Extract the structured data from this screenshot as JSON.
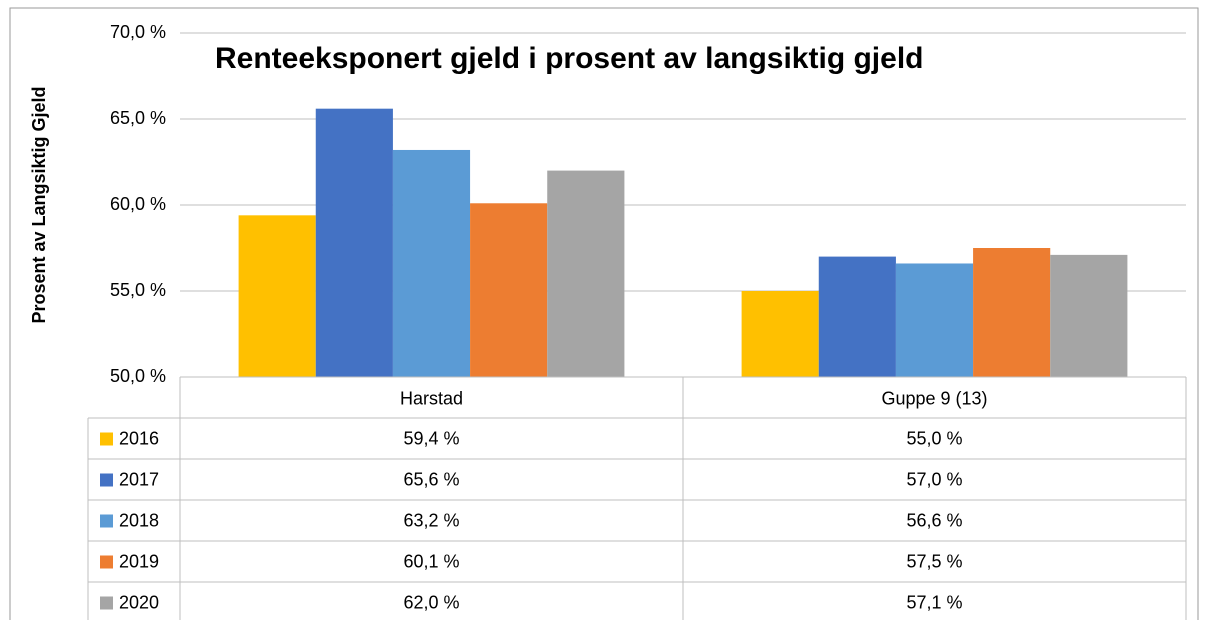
{
  "chart_data": {
    "type": "bar",
    "title": "Renteeksponert gjeld i prosent av langsiktig gjeld",
    "y_label": "Prosent av Langsiktig Gjeld",
    "categories": [
      "Harstad",
      "Guppe 9 (13)"
    ],
    "series": [
      {
        "name": "2016",
        "color": "#ffc000",
        "values": [
          59.4,
          55.0
        ],
        "value_labels": [
          "59,4 %",
          "55,0 %"
        ]
      },
      {
        "name": "2017",
        "color": "#4472c4",
        "values": [
          65.6,
          57.0
        ],
        "value_labels": [
          "65,6 %",
          "57,0 %"
        ]
      },
      {
        "name": "2018",
        "color": "#5b9bd5",
        "values": [
          63.2,
          56.6
        ],
        "value_labels": [
          "63,2 %",
          "56,6 %"
        ]
      },
      {
        "name": "2019",
        "color": "#ed7d31",
        "values": [
          60.1,
          57.5
        ],
        "value_labels": [
          "60,1 %",
          "57,5 %"
        ]
      },
      {
        "name": "2020",
        "color": "#a5a5a5",
        "values": [
          62.0,
          57.1
        ],
        "value_labels": [
          "62,0 %",
          "57,1 %"
        ]
      }
    ],
    "ylim": [
      50,
      70
    ],
    "yticks": [
      {
        "value": 50,
        "label": "50,0 %"
      },
      {
        "value": 55,
        "label": "55,0 %"
      },
      {
        "value": 60,
        "label": "60,0 %"
      },
      {
        "value": 65,
        "label": "65,0 %"
      },
      {
        "value": 70,
        "label": "70,0 %"
      }
    ],
    "grid": true,
    "data_table": true
  }
}
